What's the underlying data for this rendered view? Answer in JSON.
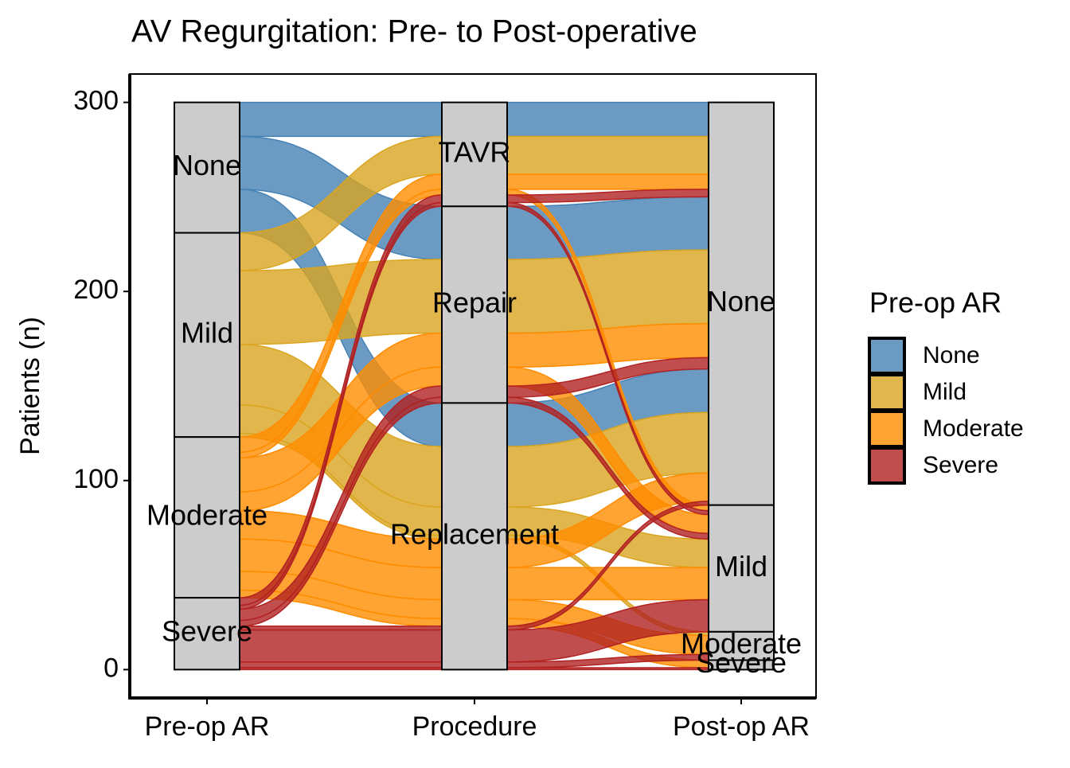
{
  "chart_data": {
    "type": "alluvial",
    "title": "AV Regurgitation: Pre- to Post-operative",
    "y_label": "Patients (n)",
    "axes": [
      {
        "name": "Pre-op AR",
        "strata": [
          "None",
          "Mild",
          "Moderate",
          "Severe"
        ]
      },
      {
        "name": "Procedure",
        "strata": [
          "TAVR",
          "Repair",
          "Replacement"
        ]
      },
      {
        "name": "Post-op AR",
        "strata": [
          "None",
          "Mild",
          "Moderate",
          "Severe"
        ]
      }
    ],
    "legend": {
      "title": "Pre-op AR"
    },
    "series": [
      {
        "name": "None",
        "color": "#4682b4"
      },
      {
        "name": "Mild",
        "color": "#daa520"
      },
      {
        "name": "Moderate",
        "color": "#ff8c00"
      },
      {
        "name": "Severe",
        "color": "#b22222"
      }
    ],
    "flows": [
      {
        "path": [
          "None",
          "TAVR",
          "None"
        ],
        "value": 18
      },
      {
        "path": [
          "None",
          "Repair",
          "None"
        ],
        "value": 28
      },
      {
        "path": [
          "None",
          "Replacement",
          "None"
        ],
        "value": 23
      },
      {
        "path": [
          "Mild",
          "TAVR",
          "None"
        ],
        "value": 20
      },
      {
        "path": [
          "Mild",
          "Repair",
          "None"
        ],
        "value": 39
      },
      {
        "path": [
          "Mild",
          "Replacement",
          "None"
        ],
        "value": 32
      },
      {
        "path": [
          "Mild",
          "Replacement",
          "Mild"
        ],
        "value": 15
      },
      {
        "path": [
          "Mild",
          "Replacement",
          "Moderate"
        ],
        "value": 2
      },
      {
        "path": [
          "Moderate",
          "TAVR",
          "None"
        ],
        "value": 8
      },
      {
        "path": [
          "Moderate",
          "TAVR",
          "Mild"
        ],
        "value": 3
      },
      {
        "path": [
          "Moderate",
          "Repair",
          "None"
        ],
        "value": 18
      },
      {
        "path": [
          "Moderate",
          "Repair",
          "Mild"
        ],
        "value": 10
      },
      {
        "path": [
          "Moderate",
          "Replacement",
          "Mild"
        ],
        "value": 17
      },
      {
        "path": [
          "Moderate",
          "Replacement",
          "None"
        ],
        "value": 15
      },
      {
        "path": [
          "Moderate",
          "Replacement",
          "Moderate"
        ],
        "value": 10
      },
      {
        "path": [
          "Moderate",
          "Replacement",
          "Severe"
        ],
        "value": 4
      },
      {
        "path": [
          "Severe",
          "TAVR",
          "None"
        ],
        "value": 4
      },
      {
        "path": [
          "Severe",
          "TAVR",
          "Mild"
        ],
        "value": 2
      },
      {
        "path": [
          "Severe",
          "Repair",
          "None"
        ],
        "value": 6
      },
      {
        "path": [
          "Severe",
          "Repair",
          "Mild"
        ],
        "value": 3
      },
      {
        "path": [
          "Severe",
          "Replacement",
          "Mild"
        ],
        "value": 17
      },
      {
        "path": [
          "Severe",
          "Replacement",
          "Moderate"
        ],
        "value": 3
      },
      {
        "path": [
          "Severe",
          "Replacement",
          "Severe"
        ],
        "value": 1
      },
      {
        "path": [
          "Severe",
          "Replacement",
          "None"
        ],
        "value": 2
      }
    ],
    "ylim": [
      -15,
      315
    ],
    "yticks": [
      0,
      100,
      200,
      300
    ]
  }
}
